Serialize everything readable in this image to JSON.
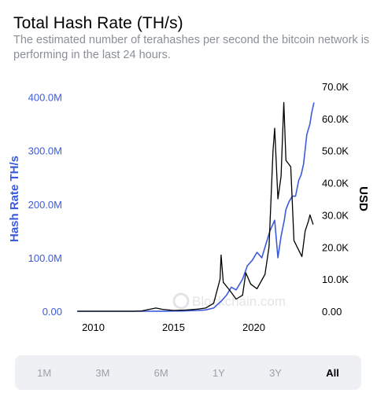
{
  "header": {
    "title": "Total Hash Rate (TH/s)",
    "subtitle": "The estimated number of terahashes per second the bitcoin network is performing in the last 24 hours."
  },
  "watermark": "Blockchain.com",
  "colors": {
    "hash_rate": "#3c5bdc",
    "price": "#000000",
    "muted_text": "#8a8f98",
    "range_bg": "#eef0f3"
  },
  "range_buttons": [
    {
      "label": "1M",
      "active": false
    },
    {
      "label": "3M",
      "active": false
    },
    {
      "label": "6M",
      "active": false
    },
    {
      "label": "1Y",
      "active": false
    },
    {
      "label": "3Y",
      "active": false
    },
    {
      "label": "All",
      "active": true
    }
  ],
  "chart_data": {
    "type": "line",
    "title": "Total Hash Rate (TH/s)",
    "subtitle": "The estimated number of terahashes per second the bitcoin network is performing in the last 24 hours.",
    "x_label": "",
    "x_range": [
      2008.6,
      2023.9
    ],
    "x_ticks": [
      {
        "value": 2010,
        "label": "2010"
      },
      {
        "value": 2015,
        "label": "2015"
      },
      {
        "value": 2020,
        "label": "2020"
      }
    ],
    "y_left": {
      "label": "Hash Rate TH/s",
      "range": [
        0,
        420000000
      ],
      "ticks": [
        {
          "value": 0,
          "label": "0.00"
        },
        {
          "value": 100000000,
          "label": "100.0M"
        },
        {
          "value": 200000000,
          "label": "200.0M"
        },
        {
          "value": 300000000,
          "label": "300.0M"
        },
        {
          "value": 400000000,
          "label": "400.0M"
        }
      ]
    },
    "y_right": {
      "label": "USD",
      "range": [
        0,
        70000
      ],
      "ticks": [
        {
          "value": 0,
          "label": "0.00"
        },
        {
          "value": 10000,
          "label": "10.0K"
        },
        {
          "value": 20000,
          "label": "20.0K"
        },
        {
          "value": 30000,
          "label": "30.0K"
        },
        {
          "value": 40000,
          "label": "40.0K"
        },
        {
          "value": 50000,
          "label": "50.0K"
        },
        {
          "value": 60000,
          "label": "60.0K"
        },
        {
          "value": 70000,
          "label": "70.0K"
        }
      ]
    },
    "grid": false,
    "legend": "none",
    "series": [
      {
        "axis": "left",
        "color": "#3c5bdc",
        "x": [
          2009.0,
          2010.0,
          2011.0,
          2012.0,
          2013.0,
          2014.0,
          2014.5,
          2015.0,
          2015.5,
          2016.0,
          2016.5,
          2017.0,
          2017.5,
          2018.0,
          2018.3,
          2018.6,
          2018.9,
          2019.0,
          2019.3,
          2019.6,
          2019.9,
          2020.2,
          2020.5,
          2020.8,
          2021.0,
          2021.3,
          2021.5,
          2021.7,
          2021.9,
          2022.0,
          2022.2,
          2022.4,
          2022.6,
          2022.8,
          2022.95,
          2023.1,
          2023.3,
          2023.5,
          2023.6,
          2023.75
        ],
        "y": [
          0,
          0,
          0,
          0,
          0,
          100000,
          200000,
          400000,
          500000,
          1000000,
          1500000,
          2500000,
          6000000,
          20000000,
          30000000,
          45000000,
          40000000,
          45000000,
          60000000,
          85000000,
          95000000,
          110000000,
          100000000,
          130000000,
          150000000,
          170000000,
          100000000,
          140000000,
          170000000,
          190000000,
          205000000,
          215000000,
          215000000,
          245000000,
          255000000,
          275000000,
          330000000,
          350000000,
          370000000,
          390000000
        ]
      },
      {
        "axis": "right",
        "color": "#000000",
        "x": [
          2009.0,
          2010.0,
          2011.5,
          2012.5,
          2013.0,
          2013.9,
          2014.3,
          2015.0,
          2015.8,
          2016.5,
          2017.0,
          2017.5,
          2017.9,
          2017.96,
          2018.1,
          2018.5,
          2018.9,
          2019.3,
          2019.5,
          2019.8,
          2020.2,
          2020.7,
          2020.95,
          2021.2,
          2021.3,
          2021.5,
          2021.7,
          2021.87,
          2022.0,
          2022.3,
          2022.5,
          2022.8,
          2023.0,
          2023.2,
          2023.4,
          2023.5,
          2023.7
        ],
        "y": [
          0,
          0,
          10,
          10,
          100,
          1000,
          600,
          250,
          400,
          650,
          1000,
          2500,
          10000,
          17500,
          9000,
          6500,
          3800,
          5000,
          12000,
          8500,
          7000,
          11500,
          20000,
          50000,
          57000,
          35000,
          42000,
          65000,
          47000,
          45000,
          22000,
          19000,
          17000,
          25000,
          28000,
          30000,
          27000
        ]
      }
    ]
  }
}
